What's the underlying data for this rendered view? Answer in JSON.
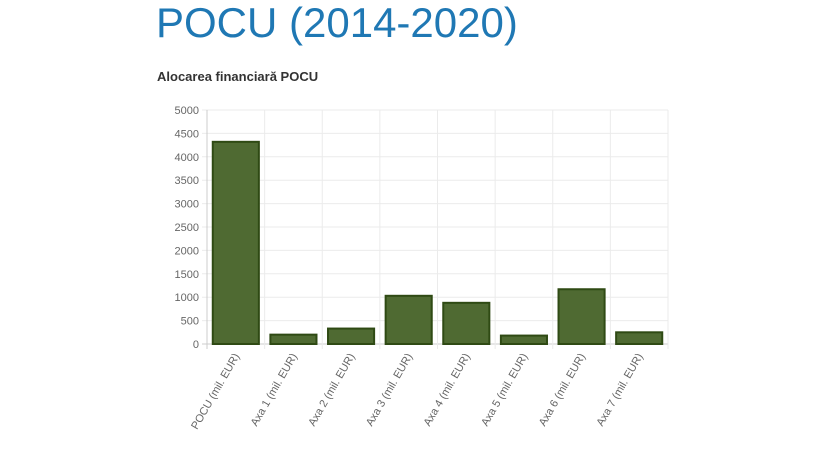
{
  "page": {
    "title": "POCU (2014-2020)"
  },
  "chart_data": {
    "type": "bar",
    "title": "Alocarea financiară POCU",
    "categories": [
      "POCU (mil. EUR)",
      "Axa 1 (mil. EUR)",
      "Axa 2 (mil. EUR)",
      "Axa 3 (mil. EUR)",
      "Axa 4 (mil. EUR)",
      "Axa 5 (mil. EUR)",
      "Axa 6 (mil. EUR)",
      "Axa 7 (mil. EUR)"
    ],
    "values": [
      4320,
      200,
      330,
      1030,
      880,
      180,
      1170,
      250
    ],
    "ylim": [
      0,
      5000
    ],
    "yticks": [
      0,
      500,
      1000,
      1500,
      2000,
      2500,
      3000,
      3500,
      4000,
      4500,
      5000
    ],
    "grid": true,
    "legend": "none",
    "colors": {
      "bar_fill": "#4f6a32",
      "bar_stroke": "#2f4a14",
      "grid": "#ebebeb",
      "axis": "#cccccc"
    }
  }
}
